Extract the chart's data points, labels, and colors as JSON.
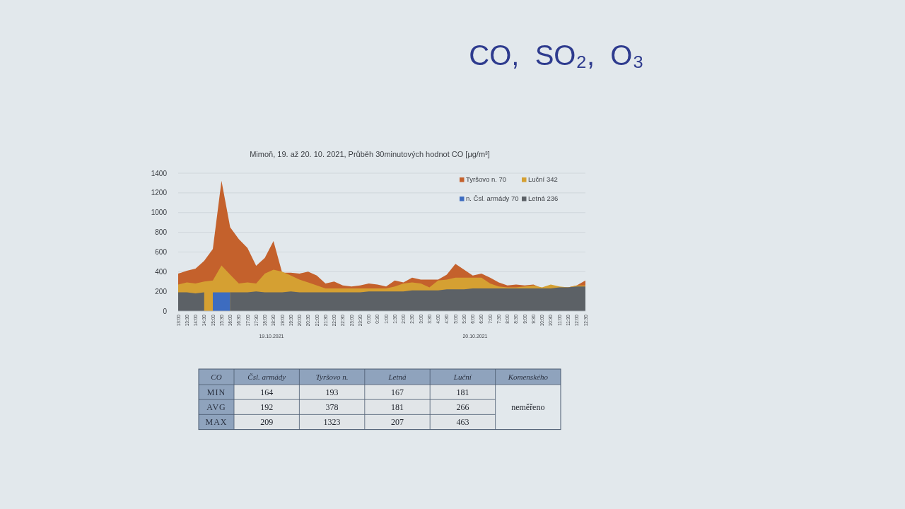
{
  "chart_data": [
    {
      "type": "area",
      "title": "CO,  SO₂,  O₃",
      "subtitle": "Mimoň, 19. až 20. 10. 2021, Průběh 30minutových hodnot CO [μg/m³]",
      "categories": [
        "13:00",
        "13:30",
        "14:00",
        "14:30",
        "15:00",
        "15:30",
        "16:00",
        "16:30",
        "17:00",
        "17:30",
        "18:00",
        "18:30",
        "19:00",
        "19:30",
        "20:00",
        "20:30",
        "21:00",
        "21:30",
        "22:00",
        "22:30",
        "23:00",
        "23:30",
        "0:00",
        "0:30",
        "1:00",
        "1:30",
        "2:00",
        "2:30",
        "3:00",
        "3:30",
        "4:00",
        "4:30",
        "5:00",
        "5:30",
        "6:00",
        "6:30",
        "7:00",
        "7:30",
        "8:00",
        "8:30",
        "9:00",
        "9:30",
        "10:00",
        "10:30",
        "11:00",
        "11:30",
        "12:00",
        "12:30"
      ],
      "series": [
        {
          "name": "Tyršovo n. 70",
          "color": "#c4612c",
          "values": [
            380,
            410,
            430,
            510,
            630,
            1323,
            850,
            730,
            640,
            460,
            540,
            710,
            390,
            390,
            380,
            400,
            360,
            280,
            300,
            260,
            250,
            260,
            280,
            270,
            250,
            310,
            290,
            340,
            320,
            320,
            320,
            370,
            480,
            420,
            360,
            380,
            340,
            290,
            260,
            270,
            260,
            270,
            230,
            260,
            240,
            240,
            260,
            310
          ]
        },
        {
          "name": "Luční 342",
          "color": "#d5a032",
          "values": [
            270,
            290,
            280,
            300,
            310,
            463,
            370,
            280,
            290,
            280,
            380,
            420,
            400,
            360,
            320,
            290,
            260,
            230,
            230,
            230,
            230,
            230,
            230,
            230,
            230,
            250,
            280,
            290,
            280,
            240,
            310,
            320,
            340,
            340,
            340,
            340,
            280,
            250,
            240,
            240,
            250,
            260,
            240,
            270,
            250,
            240,
            260,
            260
          ]
        },
        {
          "name": "n. Čsl. armády 70",
          "color": "#3d6cc0",
          "values": [
            null,
            null,
            null,
            null,
            190,
            190,
            190,
            null,
            null,
            null,
            null,
            null,
            null,
            null,
            null,
            null,
            null,
            null,
            null,
            null,
            null,
            null,
            null,
            null,
            null,
            null,
            null,
            null,
            null,
            null,
            null,
            null,
            null,
            null,
            null,
            null,
            null,
            null,
            null,
            null,
            null,
            null,
            null,
            null,
            null,
            null,
            null,
            null
          ]
        },
        {
          "name": "Letná 236",
          "color": "#5c6166",
          "values": [
            190,
            190,
            180,
            190,
            null,
            null,
            190,
            190,
            190,
            200,
            190,
            190,
            190,
            200,
            190,
            190,
            190,
            190,
            190,
            190,
            190,
            190,
            200,
            200,
            200,
            200,
            200,
            210,
            210,
            210,
            210,
            220,
            220,
            220,
            230,
            230,
            230,
            230,
            230,
            230,
            230,
            230,
            230,
            230,
            240,
            240,
            250,
            250
          ]
        }
      ],
      "ylim": [
        0,
        1400
      ],
      "yticks": [
        0,
        200,
        400,
        600,
        800,
        1000,
        1200,
        1400
      ],
      "grid": "y",
      "legend": "top right",
      "annotations": [
        "19.10.2021",
        "20.10.2021"
      ]
    },
    {
      "type": "heatmap",
      "title": "CO",
      "categories": [
        "Čsl. armády",
        "Tyršovo n.",
        "Letná",
        "Luční",
        "Komenského"
      ],
      "y_categories": [
        "MIN",
        "AVG",
        "MAX"
      ],
      "cells": [
        [
          164,
          193,
          167,
          181,
          null
        ],
        [
          192,
          378,
          181,
          266,
          null
        ],
        [
          209,
          1323,
          207,
          463,
          null
        ]
      ],
      "data_labels": true,
      "annotations": [
        "neměřeno"
      ]
    }
  ]
}
